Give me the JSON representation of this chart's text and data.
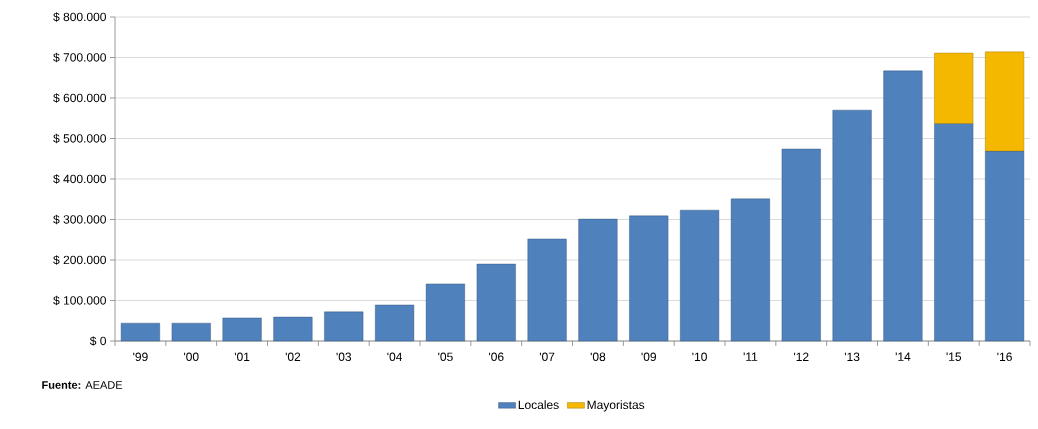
{
  "chart_data": {
    "type": "bar",
    "stacked": true,
    "categories": [
      "'99",
      "'00",
      "'01",
      "'02",
      "'03",
      "'04",
      "'05",
      "'06",
      "'07",
      "'08",
      "'09",
      "'10",
      "'11",
      "'12",
      "'13",
      "'14",
      "'15",
      "'16"
    ],
    "series": [
      {
        "name": "Locales",
        "color": "#4f81bd",
        "values": [
          44000,
          44000,
          57000,
          59000,
          72000,
          89000,
          141000,
          190000,
          252000,
          301000,
          309000,
          323000,
          351000,
          474000,
          570000,
          667000,
          537000,
          469000
        ]
      },
      {
        "name": "Mayoristas",
        "color": "#f5b800",
        "values": [
          null,
          null,
          null,
          null,
          null,
          null,
          null,
          null,
          null,
          null,
          null,
          null,
          null,
          null,
          null,
          null,
          174000,
          245000
        ]
      }
    ],
    "ylim": [
      0,
      800000
    ],
    "yticks": [
      {
        "value": 0,
        "label": "$ 0"
      },
      {
        "value": 100000,
        "label": "$ 100.000"
      },
      {
        "value": 200000,
        "label": "$ 200.000"
      },
      {
        "value": 300000,
        "label": "$ 300.000"
      },
      {
        "value": 400000,
        "label": "$ 400.000"
      },
      {
        "value": 500000,
        "label": "$ 500.000"
      },
      {
        "value": 600000,
        "label": "$ 600.000"
      },
      {
        "value": 700000,
        "label": "$ 700.000"
      },
      {
        "value": 800000,
        "label": "$ 800.000"
      }
    ],
    "grid": "y",
    "legend": "bottom",
    "annotations": [
      "**Fuente:** AEADE"
    ]
  }
}
